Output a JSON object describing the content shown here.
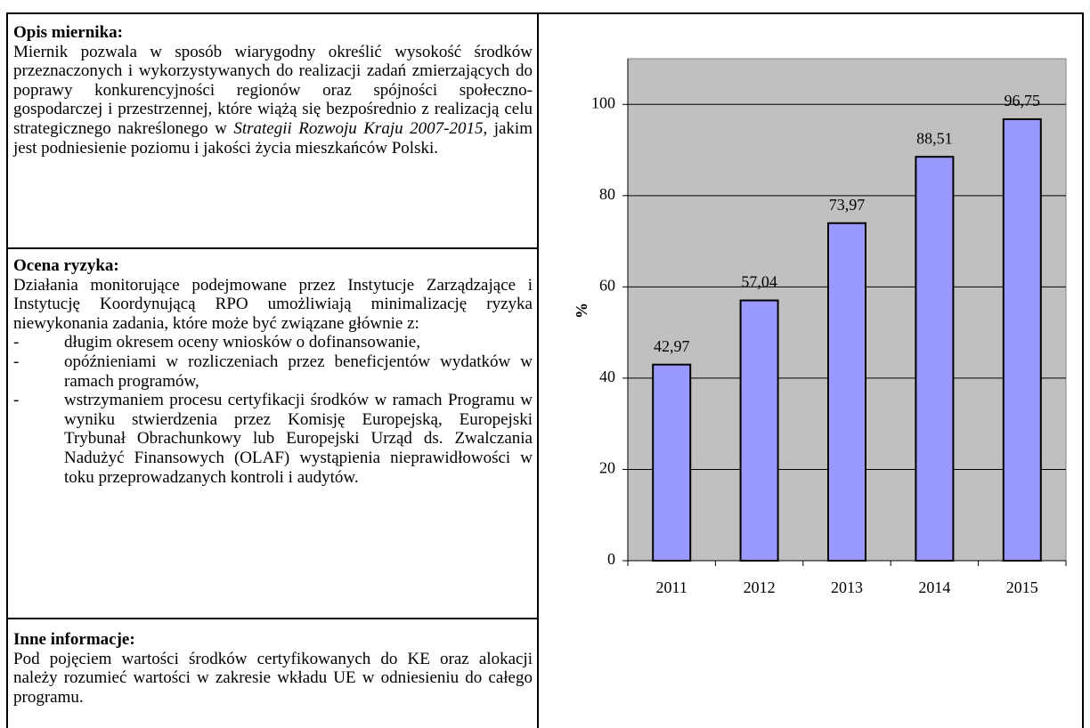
{
  "sections": [
    {
      "heading": "Opis miernika:",
      "text": [
        "Miernik pozwala w sposób wiarygodny określić wysokość środków przeznaczonych i wykorzystywanych do realizacji zadań zmierzających do poprawy konkurencyjności regionów oraz spójności społeczno-gospodarczej i przestrzennej, które wiążą się bezpośrednio z realizacją celu strategicznego nakreślonego w ",
        "Strategii Rozwoju Kraju 2007-2015",
        ", jakim jest podniesienie poziomu i jakości życia mieszkańców Polski."
      ]
    },
    {
      "heading": "Ocena ryzyka:",
      "intro": "Działania monitorujące podejmowane przez Instytucje Zarządzające i Instytucję Koordynującą RPO umożliwiają minimalizację ryzyka niewykonania zadania, które może być związane głównie z:",
      "items": [
        "długim okresem oceny wniosków o dofinansowanie,",
        "opóźnieniami w rozliczeniach przez beneficjentów wydatków w ramach programów,",
        "wstrzymaniem procesu certyfikacji środków w ramach Programu w wyniku stwierdzenia przez Komisję Europejską, Europejski Trybunał Obrachunkowy lub Europejski Urząd ds. Zwalczania Nadużyć Finansowych (OLAF) wystąpienia nieprawidłowości w toku przeprowadzanych kontroli i audytów."
      ],
      "bullet": "-"
    },
    {
      "heading": "Inne informacje:",
      "text": [
        "Pod pojęciem wartości środków certyfikowanych do KE oraz alokacji należy rozumieć wartości w zakresie wkładu UE w odniesieniu do całego programu."
      ]
    }
  ],
  "chart_data": {
    "type": "bar",
    "y_label": "%",
    "categories": [
      "2011",
      "2012",
      "2013",
      "2014",
      "2015"
    ],
    "values": [
      42.97,
      57.04,
      73.97,
      88.51,
      96.75
    ],
    "value_labels": [
      "42,97",
      "57,04",
      "73,97",
      "88,51",
      "96,75"
    ],
    "color": "#9999ff",
    "background": "#c0c0c0",
    "ylim": [
      0,
      110
    ],
    "yticks": [
      0,
      20,
      40,
      60,
      80,
      100
    ],
    "grid": true
  }
}
